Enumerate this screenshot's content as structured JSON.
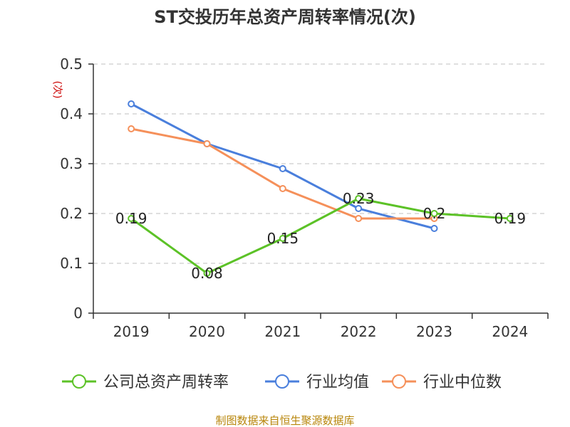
{
  "chart_data": {
    "type": "line",
    "title": "ST交投历年总资产周转率情况(次)",
    "ylabel": "(次)",
    "xlabel": "",
    "categories": [
      "2019",
      "2020",
      "2021",
      "2022",
      "2023",
      "2024"
    ],
    "ylim": [
      0,
      0.5
    ],
    "yticks": [
      0,
      0.1,
      0.2,
      0.3,
      0.4,
      0.5
    ],
    "ytick_labels": [
      "0",
      "0.1",
      "0.2",
      "0.3",
      "0.4",
      "0.5"
    ],
    "grid": true,
    "legend_position": "bottom",
    "series": [
      {
        "name": "公司总资产周转率",
        "color": "#5cc227",
        "values": [
          0.19,
          0.08,
          0.15,
          0.23,
          0.2,
          0.19
        ],
        "labels": [
          "0.19",
          "0.08",
          "0.15",
          "0.23",
          "0.2",
          "0.19"
        ]
      },
      {
        "name": "行业均值",
        "color": "#4a7fdc",
        "values": [
          0.42,
          0.34,
          0.29,
          0.21,
          0.17,
          null
        ]
      },
      {
        "name": "行业中位数",
        "color": "#f5905a",
        "values": [
          0.37,
          0.34,
          0.25,
          0.19,
          0.19,
          null
        ]
      }
    ],
    "source": "制图数据来自恒生聚源数据库"
  }
}
